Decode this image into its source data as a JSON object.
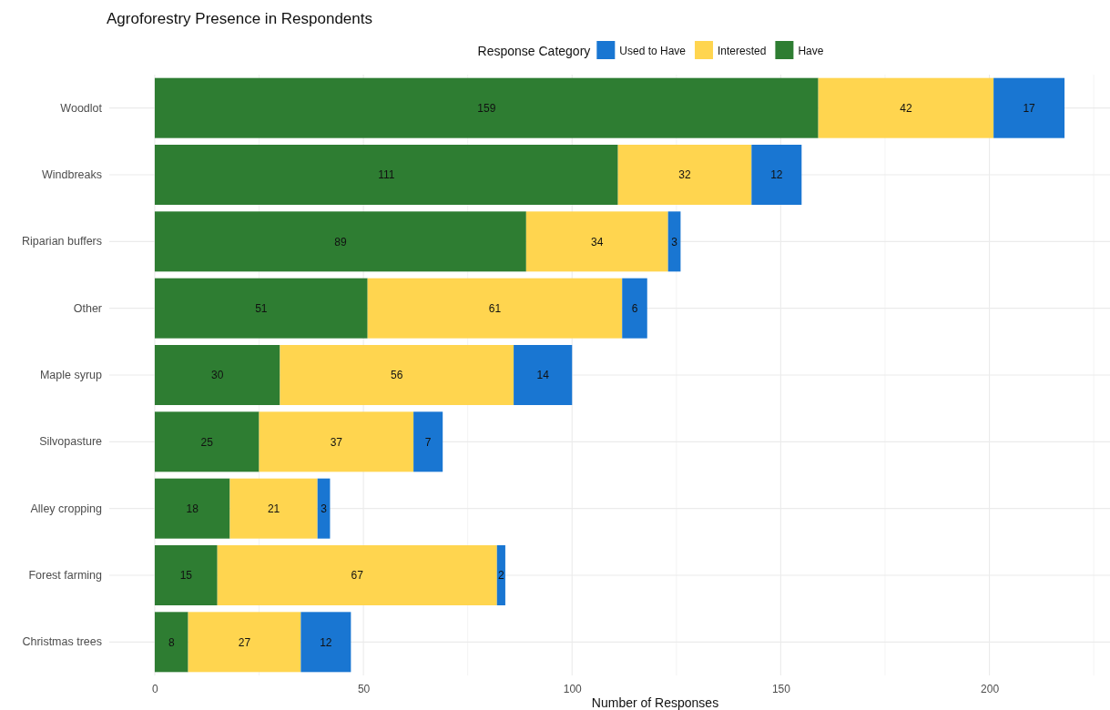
{
  "chart_data": {
    "type": "bar",
    "orientation": "horizontal",
    "stacked": true,
    "title": "Agroforestry Presence in Respondents",
    "xlabel": "Number of Responses",
    "legend_title": "Response Category",
    "legend": "top",
    "categories": [
      "Woodlot",
      "Windbreaks",
      "Riparian buffers",
      "Other",
      "Maple syrup",
      "Silvopasture",
      "Alley cropping",
      "Forest farming",
      "Christmas trees"
    ],
    "series": [
      {
        "name": "Have",
        "color": "#2e7d32",
        "values": [
          159,
          111,
          89,
          51,
          30,
          25,
          18,
          15,
          8
        ]
      },
      {
        "name": "Interested",
        "color": "#ffd54f",
        "values": [
          42,
          32,
          34,
          61,
          56,
          37,
          21,
          67,
          27
        ]
      },
      {
        "name": "Used to Have",
        "color": "#1976d2",
        "values": [
          17,
          12,
          3,
          6,
          14,
          7,
          3,
          2,
          12
        ]
      }
    ],
    "xlim": [
      -10.9,
      228.9
    ],
    "xticks": [
      0,
      {
        "value": 25,
        "label": null
      },
      50,
      {
        "value": 75,
        "label": null
      },
      100,
      {
        "value": 125,
        "label": null
      },
      150,
      {
        "value": 175,
        "label": null
      },
      200,
      {
        "value": 225,
        "label": null
      }
    ],
    "grid": true,
    "data_labels": true
  }
}
